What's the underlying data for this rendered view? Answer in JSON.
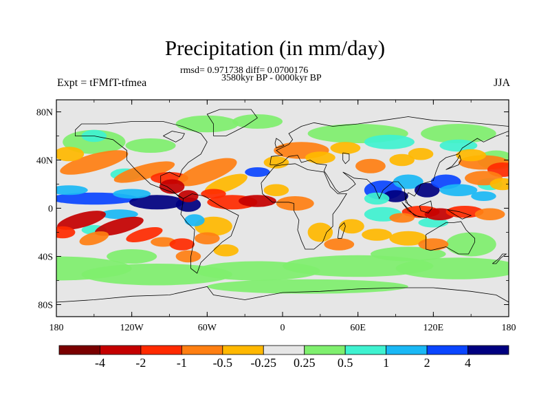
{
  "title": "Precipitation (in mm/day)",
  "stats": "rmsd= 0.971738 diff= 0.0700176",
  "period": "3580kyr BP - 0000kyr BP",
  "experiment": "Expt = tFMfT-tfmea",
  "season": "JJA",
  "lat_ticks": [
    "80N",
    "40N",
    "0",
    "40S",
    "80S"
  ],
  "lon_ticks": [
    "180",
    "120W",
    "60W",
    "0",
    "60E",
    "120E",
    "180"
  ],
  "colorbar": {
    "labels": [
      "-4",
      "-2",
      "-1",
      "-0.5",
      "-0.25",
      "0.25",
      "0.5",
      "1",
      "2",
      "4"
    ],
    "colors": [
      "#7a0000",
      "#c40000",
      "#ff2a00",
      "#ff7f12",
      "#ffb800",
      "#e6e6e6",
      "#7fef6e",
      "#3ff2d0",
      "#1ab8f5",
      "#0a45ff",
      "#000080"
    ]
  },
  "colors": {
    "neutral": "#e6e6e6",
    "coast": "#000000"
  }
}
